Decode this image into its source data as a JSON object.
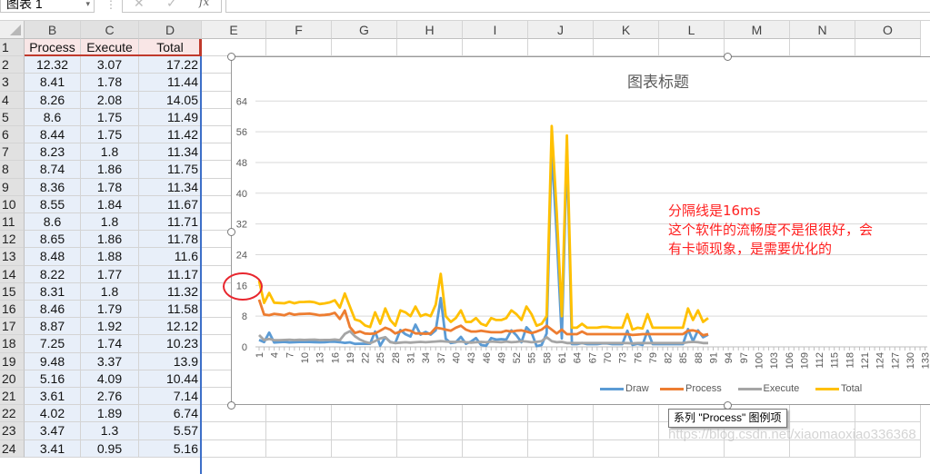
{
  "formula_bar": {
    "name_box": "图表 1",
    "cancel_icon": "✕",
    "enter_icon": "✓",
    "fx_label": "fx"
  },
  "columns": [
    "B",
    "C",
    "D",
    "E",
    "F",
    "G",
    "H",
    "I",
    "J",
    "K",
    "L",
    "M",
    "N",
    "O"
  ],
  "row_numbers": [
    1,
    2,
    3,
    4,
    5,
    6,
    7,
    8,
    9,
    10,
    11,
    12,
    13,
    14,
    15,
    16,
    17,
    18,
    19,
    20,
    21,
    22,
    23,
    24
  ],
  "sheet": {
    "headers": [
      "Process",
      "Execute",
      "Total"
    ],
    "rows": [
      [
        "12.32",
        "3.07",
        "17.22"
      ],
      [
        "8.41",
        "1.78",
        "11.44"
      ],
      [
        "8.26",
        "2.08",
        "14.05"
      ],
      [
        "8.6",
        "1.75",
        "11.49"
      ],
      [
        "8.44",
        "1.75",
        "11.42"
      ],
      [
        "8.23",
        "1.8",
        "11.34"
      ],
      [
        "8.74",
        "1.86",
        "11.75"
      ],
      [
        "8.36",
        "1.78",
        "11.34"
      ],
      [
        "8.55",
        "1.84",
        "11.67"
      ],
      [
        "8.6",
        "1.8",
        "11.71"
      ],
      [
        "8.65",
        "1.86",
        "11.78"
      ],
      [
        "8.48",
        "1.88",
        "11.6"
      ],
      [
        "8.22",
        "1.77",
        "11.17"
      ],
      [
        "8.31",
        "1.8",
        "11.32"
      ],
      [
        "8.46",
        "1.79",
        "11.58"
      ],
      [
        "8.87",
        "1.92",
        "12.12"
      ],
      [
        "7.25",
        "1.74",
        "10.23"
      ],
      [
        "9.48",
        "3.37",
        "13.9"
      ],
      [
        "5.16",
        "4.09",
        "10.44"
      ],
      [
        "3.61",
        "2.76",
        "7.14"
      ],
      [
        "4.02",
        "1.89",
        "6.74"
      ],
      [
        "3.47",
        "1.3",
        "5.57"
      ],
      [
        "3.41",
        "0.95",
        "5.16"
      ]
    ]
  },
  "chart_data": {
    "type": "line",
    "title": "图表标题",
    "ylim": [
      0,
      64
    ],
    "y_ticks": [
      "0",
      "8",
      "16",
      "24",
      "32",
      "40",
      "48",
      "56",
      "64"
    ],
    "x_ticks": [
      "1",
      "4",
      "7",
      "10",
      "13",
      "16",
      "19",
      "22",
      "25",
      "28",
      "31",
      "34",
      "37",
      "40",
      "43",
      "46",
      "49",
      "52",
      "55",
      "58",
      "61",
      "64",
      "67",
      "70",
      "73",
      "76",
      "79",
      "82",
      "85",
      "88",
      "91",
      "94",
      "97",
      "100",
      "103",
      "106",
      "109",
      "112",
      "115",
      "118",
      "121",
      "124",
      "127",
      "130",
      "133"
    ],
    "xlim": [
      1,
      133
    ],
    "grid": true,
    "legend": "bottom",
    "series": [
      {
        "name": "Draw",
        "color": "#5b9bd5",
        "values": [
          1.83,
          1.25,
          3.71,
          1.14,
          1.23,
          1.31,
          1.15,
          1.2,
          1.28,
          1.31,
          1.27,
          1.24,
          1.18,
          1.21,
          1.33,
          1.33,
          1.24,
          1.05,
          1.19,
          0.77,
          0.83,
          0.8,
          0.8,
          4,
          0.3,
          2.5,
          1.3,
          1,
          4.4,
          3.3,
          2.7,
          5.8,
          3.2,
          3.9,
          3.2,
          4.3,
          12.7,
          2.1,
          1,
          1.2,
          2.6,
          0.8,
          1.4,
          2.3,
          0.5,
          0.3,
          2.3,
          1.9,
          2,
          1.9,
          4.3,
          3,
          1.2,
          5.1,
          3.7,
          0.2,
          0.5,
          3.5,
          51.5,
          29,
          2.2,
          51.7,
          0.7,
          0.7,
          1,
          0.7,
          0.7,
          0.7,
          0.9,
          0.9,
          0.7,
          0.7,
          0.7,
          4.2,
          0.5,
          0.8,
          0.5,
          4.2,
          0.7,
          0.7,
          0.7,
          0.7,
          0.7,
          0.7,
          0.7,
          4.6,
          1.5,
          4.3,
          2.5,
          3.2
        ]
      },
      {
        "name": "Process",
        "color": "#ed7d31",
        "values": [
          12.32,
          8.41,
          8.26,
          8.6,
          8.44,
          8.23,
          8.74,
          8.36,
          8.55,
          8.6,
          8.65,
          8.48,
          8.22,
          8.31,
          8.46,
          8.87,
          7.25,
          9.48,
          5.16,
          3.61,
          4.02,
          3.47,
          3.41,
          3.5,
          4.2,
          5,
          4.5,
          3.5,
          4,
          4.5,
          4.2,
          3.5,
          3.5,
          3.4,
          3.5,
          5,
          4.8,
          4.5,
          4.2,
          5,
          5.5,
          4.5,
          4,
          4,
          4.2,
          4,
          3.8,
          3.8,
          3.8,
          4.2,
          4,
          4.2,
          4.3,
          4,
          3.6,
          4,
          4.5,
          5.5,
          4.5,
          3.5,
          4.5,
          3.3,
          3.3,
          3.3,
          4,
          3.3,
          3.3,
          3.3,
          3.3,
          3.3,
          3.3,
          3.3,
          3.3,
          3.3,
          3.1,
          3.2,
          3.3,
          3.3,
          3.3,
          3.3,
          3.3,
          3.3,
          3.3,
          3.3,
          3.3,
          4.2,
          4.3,
          4,
          3,
          3.3
        ]
      },
      {
        "name": "Execute",
        "color": "#a5a5a5",
        "values": [
          3.07,
          1.78,
          2.08,
          1.75,
          1.75,
          1.8,
          1.86,
          1.78,
          1.84,
          1.8,
          1.86,
          1.88,
          1.77,
          1.8,
          1.79,
          1.92,
          1.74,
          3.37,
          4.09,
          2.76,
          1.89,
          1.3,
          0.95,
          1.5,
          2.2,
          2.5,
          1.2,
          1,
          1.1,
          1.2,
          1.1,
          1.2,
          1.3,
          1.2,
          1.3,
          1.4,
          1.5,
          1.4,
          1.3,
          1.3,
          1.4,
          1.2,
          1.1,
          1.2,
          1.3,
          1.2,
          1.4,
          1.3,
          1.2,
          1.4,
          1.2,
          1.3,
          1.5,
          1.4,
          1.2,
          1.3,
          1.5,
          2.5,
          1.5,
          1.2,
          1.3,
          1,
          1,
          1,
          1,
          1,
          1,
          1,
          1,
          1,
          1,
          1,
          1,
          1,
          0.9,
          1,
          1,
          1,
          1,
          1,
          1,
          1,
          1,
          1,
          1,
          1.2,
          1.3,
          1.2,
          1,
          1
        ]
      },
      {
        "name": "Total",
        "color": "#ffc000",
        "values": [
          17.22,
          11.44,
          14.05,
          11.49,
          11.42,
          11.34,
          11.75,
          11.34,
          11.67,
          11.71,
          11.78,
          11.6,
          11.17,
          11.32,
          11.58,
          12.12,
          10.23,
          13.9,
          10.44,
          7.14,
          6.74,
          5.57,
          5.16,
          9,
          6,
          10,
          7,
          5.5,
          9.5,
          9,
          8,
          10.5,
          8,
          8.5,
          8,
          11,
          19,
          8,
          6.5,
          7.5,
          9.5,
          6.5,
          6.5,
          7.5,
          6,
          5.5,
          7.5,
          7,
          7,
          7.5,
          9.5,
          8.5,
          7,
          10.5,
          8.5,
          5.5,
          6,
          8,
          57.5,
          35,
          8,
          55,
          5,
          5,
          6,
          5,
          5,
          5,
          5.2,
          5.2,
          5,
          5,
          5,
          8.5,
          4.5,
          5,
          4.8,
          8.5,
          5,
          5,
          5,
          5,
          5,
          5,
          5,
          10,
          7,
          9.5,
          6.5,
          7.5
        ]
      }
    ]
  },
  "annotation": {
    "lines": [
      "分隔线是16ms",
      "这个软件的流畅度不是很很好，会",
      "有卡顿现象，是需要优化的"
    ]
  },
  "tooltip": "系列 \"Process\" 图例项",
  "watermark": "https://blog.csdn.net/xiaomaoxiao336368"
}
